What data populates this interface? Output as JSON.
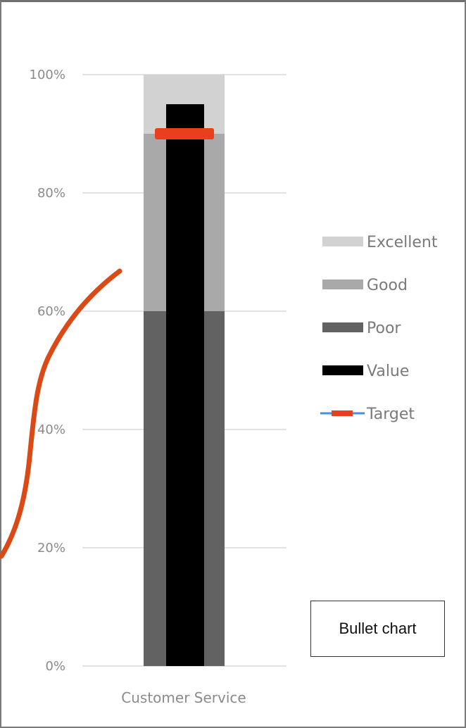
{
  "chart_data": {
    "type": "bullet",
    "categories": [
      "Customer Service"
    ],
    "ylim": [
      0,
      100
    ],
    "y_ticks": [
      "0%",
      "20%",
      "40%",
      "60%",
      "80%",
      "100%"
    ],
    "bands": [
      {
        "name": "Poor",
        "from": 0,
        "to": 60,
        "color": "#626262"
      },
      {
        "name": "Good",
        "from": 60,
        "to": 90,
        "color": "#a9a9a9"
      },
      {
        "name": "Excellent",
        "from": 90,
        "to": 100,
        "color": "#d2d2d2"
      }
    ],
    "value": {
      "name": "Value",
      "value": 95,
      "color": "#000000"
    },
    "target": {
      "name": "Target",
      "value": 90,
      "color": "#e8401c",
      "legend_line_color": "#4a90d9"
    },
    "legend": {
      "position": "right",
      "entries": [
        "Excellent",
        "Good",
        "Poor",
        "Value",
        "Target"
      ]
    },
    "grid": true
  },
  "annotation": {
    "caption": "Bullet chart",
    "stroke_color": "#d94a16"
  }
}
